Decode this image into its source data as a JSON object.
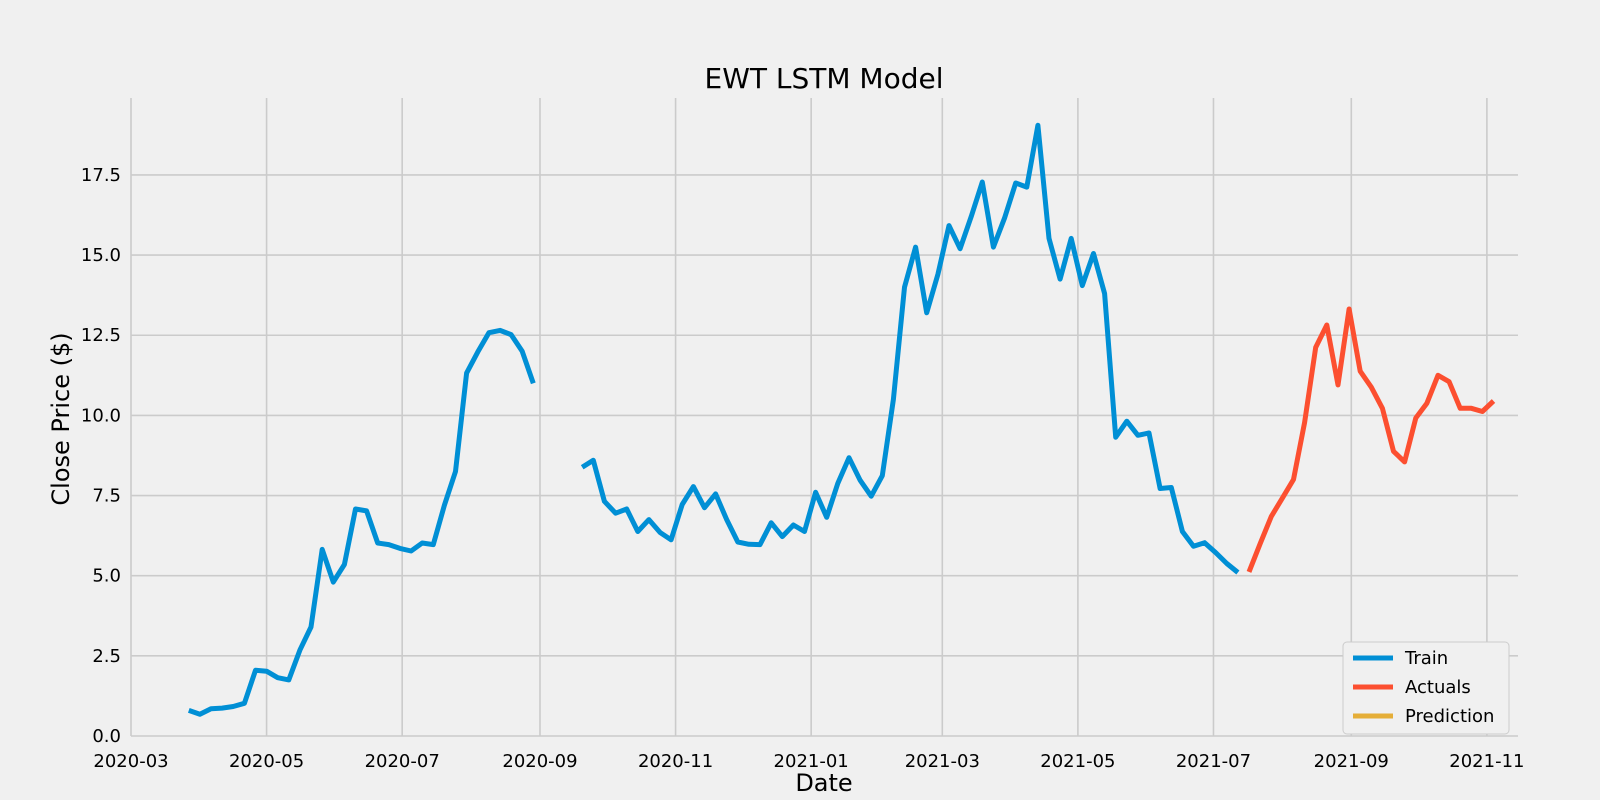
{
  "chart_data": {
    "type": "line",
    "title": "EWT LSTM Model",
    "xlabel": "Date",
    "ylabel": "Close Price ($)",
    "x_tick_labels": [
      "2020-03",
      "2020-05",
      "2020-07",
      "2020-09",
      "2020-11",
      "2021-01",
      "2021-03",
      "2021-05",
      "2021-07",
      "2021-09",
      "2021-11"
    ],
    "y_tick_labels": [
      "0.0",
      "2.5",
      "5.0",
      "7.5",
      "10.0",
      "12.5",
      "15.0",
      "17.5"
    ],
    "x_ticks": [
      "2020-03-01",
      "2020-05-01",
      "2020-07-01",
      "2020-09-01",
      "2020-11-01",
      "2021-01-01",
      "2021-03-01",
      "2021-05-01",
      "2021-07-01",
      "2021-09-01",
      "2021-11-01"
    ],
    "y_ticks": [
      0,
      2.5,
      5,
      7.5,
      10,
      12.5,
      15,
      17.5
    ],
    "xlim": [
      "2020-03-01",
      "2021-11-15"
    ],
    "ylim": [
      0,
      19.9
    ],
    "grid": true,
    "legend_position": "lower-right",
    "colors": {
      "background": "#f0f0f0",
      "grid": "#cbcbcb",
      "train": "#008fd5",
      "actuals": "#fc4f30",
      "prediction": "#e5ae38"
    },
    "series": [
      {
        "name": "Train",
        "color": "#008fd5",
        "points": [
          [
            "2020-03-27",
            0.8
          ],
          [
            "2020-04-01",
            0.68
          ],
          [
            "2020-04-06",
            0.85
          ],
          [
            "2020-04-11",
            0.87
          ],
          [
            "2020-04-16",
            0.92
          ],
          [
            "2020-04-21",
            1.02
          ],
          [
            "2020-04-26",
            2.05
          ],
          [
            "2020-05-01",
            2.02
          ],
          [
            "2020-05-06",
            1.82
          ],
          [
            "2020-05-11",
            1.75
          ],
          [
            "2020-05-16",
            2.68
          ],
          [
            "2020-05-21",
            3.4
          ],
          [
            "2020-05-26",
            5.82
          ],
          [
            "2020-05-31",
            4.8
          ],
          [
            "2020-06-05",
            5.35
          ],
          [
            "2020-06-10",
            7.08
          ],
          [
            "2020-06-15",
            7.02
          ],
          [
            "2020-06-20",
            6.02
          ],
          [
            "2020-06-25",
            5.97
          ],
          [
            "2020-06-30",
            5.85
          ],
          [
            "2020-07-05",
            5.77
          ],
          [
            "2020-07-10",
            6.02
          ],
          [
            "2020-07-15",
            5.97
          ],
          [
            "2020-07-20",
            7.2
          ],
          [
            "2020-07-25",
            8.25
          ],
          [
            "2020-07-30",
            11.32
          ],
          [
            "2020-08-04",
            11.98
          ],
          [
            "2020-08-09",
            12.58
          ],
          [
            "2020-08-14",
            12.65
          ],
          [
            "2020-08-19",
            12.52
          ],
          [
            "2020-08-24",
            12.0
          ],
          [
            "2020-08-29",
            11.0
          ],
          [
            "2020-09-20",
            null
          ],
          [
            "2020-09-20",
            8.38
          ],
          [
            "2020-09-25",
            8.6
          ],
          [
            "2020-09-30",
            7.32
          ],
          [
            "2020-10-05",
            6.95
          ],
          [
            "2020-10-10",
            7.08
          ],
          [
            "2020-10-15",
            6.38
          ],
          [
            "2020-10-20",
            6.75
          ],
          [
            "2020-10-25",
            6.35
          ],
          [
            "2020-10-30",
            6.12
          ],
          [
            "2020-11-04",
            7.22
          ],
          [
            "2020-11-09",
            7.78
          ],
          [
            "2020-11-14",
            7.12
          ],
          [
            "2020-11-19",
            7.55
          ],
          [
            "2020-11-24",
            6.75
          ],
          [
            "2020-11-29",
            6.05
          ],
          [
            "2020-12-04",
            5.98
          ],
          [
            "2020-12-09",
            5.97
          ],
          [
            "2020-12-14",
            6.65
          ],
          [
            "2020-12-19",
            6.22
          ],
          [
            "2020-12-24",
            6.58
          ],
          [
            "2020-12-29",
            6.38
          ],
          [
            "2021-01-03",
            7.6
          ],
          [
            "2021-01-08",
            6.82
          ],
          [
            "2021-01-13",
            7.88
          ],
          [
            "2021-01-18",
            8.68
          ],
          [
            "2021-01-23",
            7.98
          ],
          [
            "2021-01-28",
            7.48
          ],
          [
            "2021-02-02",
            8.12
          ],
          [
            "2021-02-07",
            10.5
          ],
          [
            "2021-02-12",
            14.0
          ],
          [
            "2021-02-17",
            15.25
          ],
          [
            "2021-02-22",
            13.2
          ],
          [
            "2021-02-27",
            14.4
          ],
          [
            "2021-03-04",
            15.92
          ],
          [
            "2021-03-09",
            15.2
          ],
          [
            "2021-03-14",
            16.2
          ],
          [
            "2021-03-19",
            17.28
          ],
          [
            "2021-03-24",
            15.25
          ],
          [
            "2021-03-29",
            16.15
          ],
          [
            "2021-04-03",
            17.25
          ],
          [
            "2021-04-08",
            17.12
          ],
          [
            "2021-04-13",
            19.05
          ],
          [
            "2021-04-18",
            15.52
          ],
          [
            "2021-04-23",
            14.25
          ],
          [
            "2021-04-28",
            15.52
          ],
          [
            "2021-05-03",
            14.05
          ],
          [
            "2021-05-08",
            15.05
          ],
          [
            "2021-05-13",
            13.8
          ],
          [
            "2021-05-18",
            9.32
          ],
          [
            "2021-05-23",
            9.82
          ],
          [
            "2021-05-28",
            9.38
          ],
          [
            "2021-06-02",
            9.45
          ],
          [
            "2021-06-07",
            7.72
          ],
          [
            "2021-06-12",
            7.75
          ],
          [
            "2021-06-17",
            6.38
          ],
          [
            "2021-06-22",
            5.92
          ],
          [
            "2021-06-27",
            6.03
          ],
          [
            "2021-07-02",
            5.72
          ],
          [
            "2021-07-07",
            5.38
          ],
          [
            "2021-07-12",
            5.1
          ]
        ]
      },
      {
        "name": "Actuals",
        "color": "#fc4f30",
        "points": [
          [
            "2021-07-17",
            5.12
          ],
          [
            "2021-07-22",
            6.0
          ],
          [
            "2021-07-27",
            6.85
          ],
          [
            "2021-08-01",
            7.42
          ],
          [
            "2021-08-06",
            8.0
          ],
          [
            "2021-08-11",
            9.78
          ],
          [
            "2021-08-16",
            12.12
          ],
          [
            "2021-08-21",
            12.82
          ],
          [
            "2021-08-26",
            10.95
          ],
          [
            "2021-08-31",
            13.32
          ],
          [
            "2021-09-05",
            11.38
          ],
          [
            "2021-09-10",
            10.88
          ],
          [
            "2021-09-15",
            10.22
          ],
          [
            "2021-09-20",
            8.88
          ],
          [
            "2021-09-25",
            8.55
          ],
          [
            "2021-09-30",
            9.92
          ],
          [
            "2021-10-05",
            10.38
          ],
          [
            "2021-10-10",
            11.25
          ],
          [
            "2021-10-15",
            11.05
          ],
          [
            "2021-10-20",
            10.22
          ],
          [
            "2021-10-25",
            10.22
          ],
          [
            "2021-10-30",
            10.12
          ],
          [
            "2021-11-04",
            10.45
          ]
        ]
      },
      {
        "name": "Prediction",
        "color": "#e5ae38",
        "points": []
      }
    ]
  }
}
